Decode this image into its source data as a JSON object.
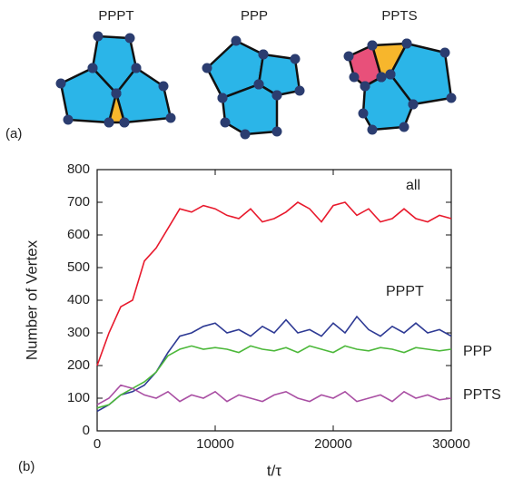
{
  "panel_a": {
    "label": "(a)",
    "diagrams": [
      {
        "label": "PPPT"
      },
      {
        "label": "PPP"
      },
      {
        "label": "PPTS"
      }
    ]
  },
  "chart_data": {
    "type": "line",
    "panel_label": "(b)",
    "x_label": "t/τ",
    "y_label": "Number of Vertex",
    "x": [
      0,
      1000,
      2000,
      3000,
      4000,
      5000,
      6000,
      7000,
      8000,
      9000,
      10000,
      11000,
      12000,
      13000,
      14000,
      15000,
      16000,
      17000,
      18000,
      19000,
      20000,
      21000,
      22000,
      23000,
      24000,
      25000,
      26000,
      27000,
      28000,
      29000,
      30000
    ],
    "series": [
      {
        "name": "all",
        "color": "#e8192c",
        "values": [
          200,
          300,
          380,
          400,
          520,
          560,
          620,
          680,
          670,
          690,
          680,
          660,
          650,
          680,
          640,
          650,
          670,
          700,
          680,
          640,
          690,
          700,
          660,
          680,
          640,
          650,
          680,
          650,
          640,
          660,
          650
        ]
      },
      {
        "name": "PPPT",
        "color": "#2e3a94",
        "values": [
          60,
          80,
          110,
          120,
          140,
          180,
          240,
          290,
          300,
          320,
          330,
          300,
          310,
          290,
          320,
          300,
          340,
          300,
          310,
          290,
          330,
          300,
          350,
          310,
          290,
          320,
          300,
          330,
          300,
          310,
          290
        ]
      },
      {
        "name": "PPP",
        "color": "#4cb83a",
        "values": [
          70,
          80,
          110,
          130,
          150,
          180,
          230,
          250,
          260,
          250,
          255,
          250,
          240,
          260,
          250,
          245,
          255,
          240,
          260,
          250,
          240,
          260,
          250,
          245,
          255,
          250,
          240,
          255,
          250,
          245,
          250
        ]
      },
      {
        "name": "PPTS",
        "color": "#a94fa3",
        "values": [
          80,
          100,
          140,
          130,
          110,
          100,
          120,
          90,
          110,
          100,
          120,
          90,
          110,
          100,
          90,
          110,
          120,
          100,
          90,
          110,
          100,
          120,
          90,
          100,
          110,
          90,
          120,
          100,
          110,
          95,
          100
        ]
      }
    ],
    "xlim": [
      0,
      30000
    ],
    "ylim": [
      0,
      800
    ],
    "xticks": [
      0,
      10000,
      20000,
      30000
    ],
    "yticks": [
      0,
      100,
      200,
      300,
      400,
      500,
      600,
      700,
      800
    ],
    "grid": false
  }
}
